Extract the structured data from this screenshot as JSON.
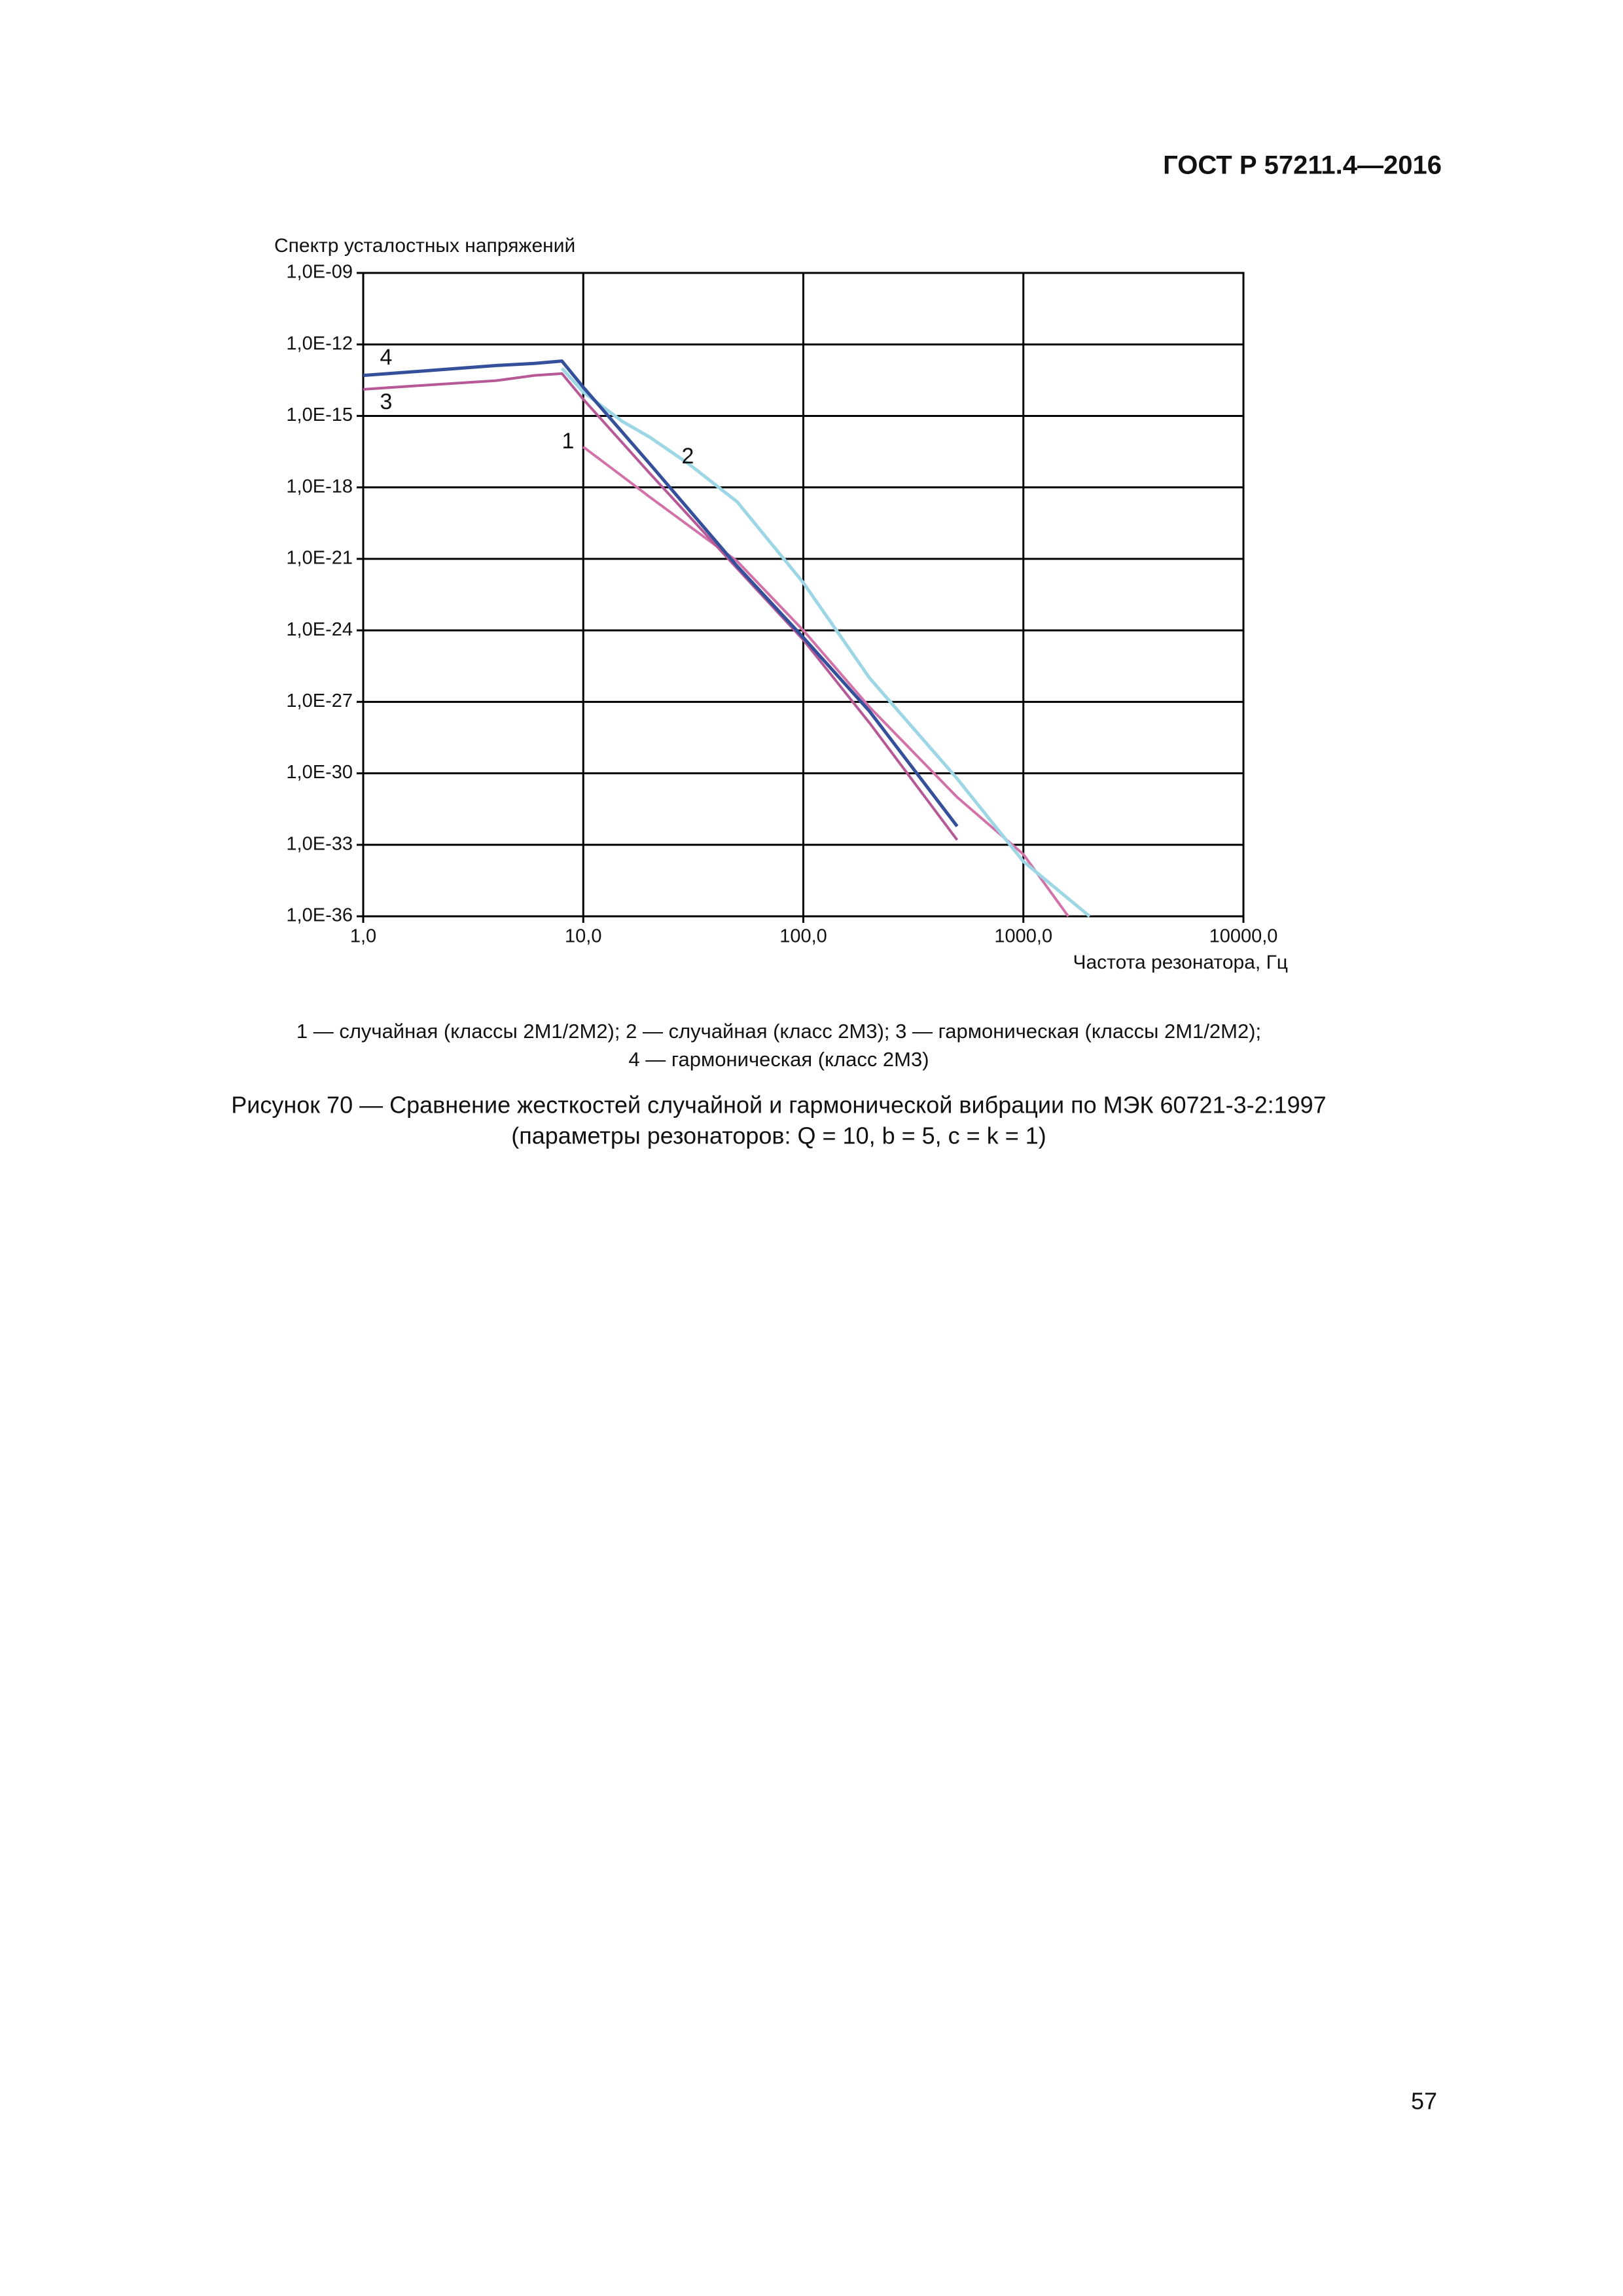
{
  "header": {
    "title": "ГОСТ Р 57211.4—2016"
  },
  "chart_data": {
    "type": "line",
    "y_label": "Спектр усталостных напряжений",
    "x_label": "Частота резонатора, Гц",
    "xscale": "log",
    "yscale": "log",
    "grid": true,
    "xlim": [
      1,
      10000
    ],
    "xticks": [
      {
        "value": 1,
        "label": "1,0"
      },
      {
        "value": 10,
        "label": "10,0"
      },
      {
        "value": 100,
        "label": "100,0"
      },
      {
        "value": 1000,
        "label": "1000,0"
      },
      {
        "value": 10000,
        "label": "10000,0"
      }
    ],
    "ylim": [
      1e-36,
      1e-09
    ],
    "yticks": [
      {
        "value": 1e-09,
        "label": "1,0E-09"
      },
      {
        "value": 1e-12,
        "label": "1,0E-12"
      },
      {
        "value": 1e-15,
        "label": "1,0E-15"
      },
      {
        "value": 1e-18,
        "label": "1,0E-18"
      },
      {
        "value": 1e-21,
        "label": "1,0E-21"
      },
      {
        "value": 1e-24,
        "label": "1,0E-24"
      },
      {
        "value": 1e-27,
        "label": "1,0E-27"
      },
      {
        "value": 1e-30,
        "label": "1,0E-30"
      },
      {
        "value": 1e-33,
        "label": "1,0E-33"
      },
      {
        "value": 1e-36,
        "label": "1,0E-36"
      }
    ],
    "series": [
      {
        "name": "1",
        "color": "#d372a9",
        "x": [
          10,
          15,
          20,
          50,
          100,
          200,
          500,
          1000,
          1600
        ],
        "values": [
          5e-17,
          3e-18,
          4e-19,
          8e-22,
          1e-24,
          6e-28,
          1e-31,
          4e-34,
          1e-36
        ]
      },
      {
        "name": "2",
        "color": "#9dd7e6",
        "x": [
          8,
          10,
          15,
          20,
          30,
          50,
          100,
          200,
          500,
          1000,
          2000
        ],
        "values": [
          1e-13,
          1e-14,
          6e-16,
          1.3e-16,
          1e-17,
          2.5e-19,
          1e-22,
          1e-26,
          6e-31,
          2e-34,
          1e-36
        ]
      },
      {
        "name": "3",
        "color": "#b65996",
        "x": [
          1,
          2,
          4,
          6,
          8,
          10,
          20,
          50,
          100,
          200,
          500
        ],
        "values": [
          1.3e-14,
          2e-14,
          3e-14,
          5e-14,
          6e-14,
          5e-15,
          4e-18,
          4e-22,
          4e-25,
          1.3e-28,
          1.6e-33
        ]
      },
      {
        "name": "4",
        "color": "#34509a",
        "x": [
          1,
          2,
          4,
          6,
          8,
          10,
          20,
          50,
          100,
          200,
          500
        ],
        "values": [
          5e-14,
          8e-14,
          1.3e-13,
          1.6e-13,
          2e-13,
          1.6e-14,
          1e-17,
          5e-22,
          5e-25,
          4e-28,
          6e-33
        ]
      }
    ]
  },
  "legend_lines": [
    "1 — случайная (классы 2М1/2М2); 2 — случайная (класс 2М3); 3 — гармоническая (классы 2М1/2М2);",
    "4 — гармоническая (класс 2М3)"
  ],
  "caption": [
    "Рисунок 70 — Сравнение жесткостей случайной и гармонической вибрации по МЭК 60721-3-2:1997",
    "(параметры резонаторов: Q = 10, b = 5, c = k = 1)"
  ],
  "page_number": "57"
}
